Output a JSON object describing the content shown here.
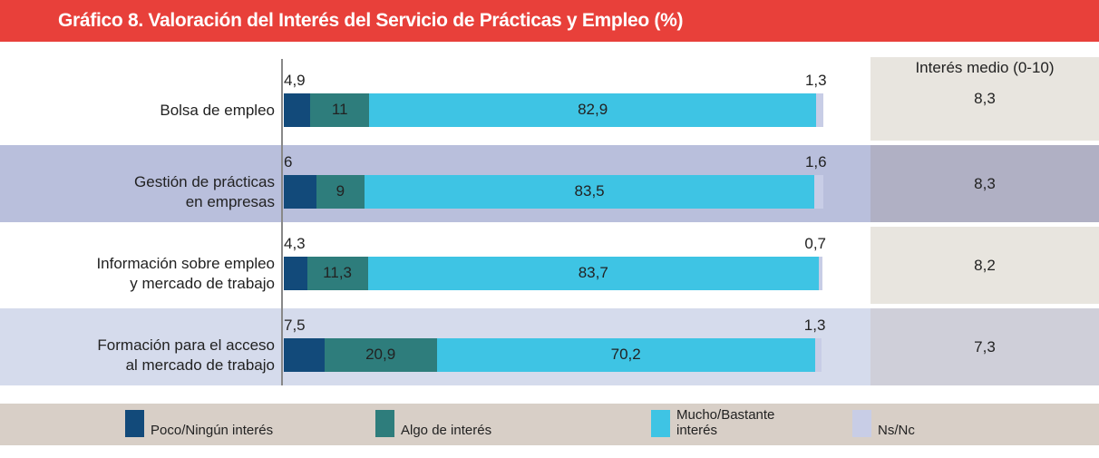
{
  "chart_data": {
    "type": "stacked_bar_horizontal",
    "title": "Gráfico 8. Valoración del Interés del Servicio de Prácticas y Empleo (%)",
    "categories": [
      "Bolsa de empleo",
      "Gestión de prácticas\nen empresas",
      "Información sobre empleo\ny mercado de trabajo",
      "Formación para el acceso\nal mercado de trabajo"
    ],
    "xlim": [
      0,
      100
    ],
    "series": [
      {
        "name": "Poco/Ningún interés",
        "color": "#124a7a",
        "values": [
          4.9,
          6,
          4.3,
          7.5
        ],
        "value_labels": [
          "4,9",
          "6",
          "4,3",
          "7,5"
        ]
      },
      {
        "name": "Algo de interés",
        "color": "#2e7d7c",
        "values": [
          11,
          9,
          11.3,
          20.9
        ],
        "value_labels": [
          "11",
          "9",
          "11,3",
          "20,9"
        ]
      },
      {
        "name": "Mucho/Bastante\ninterés",
        "color": "#3ec4e4",
        "values": [
          82.9,
          83.5,
          83.7,
          70.2
        ],
        "value_labels": [
          "82,9",
          "83,5",
          "83,7",
          "70,2"
        ]
      },
      {
        "name": "Ns/Nc",
        "color": "#c8cde6",
        "values": [
          1.3,
          1.6,
          0.7,
          1.3
        ],
        "value_labels": [
          "1,3",
          "1,6",
          "0,7",
          "1,3"
        ]
      }
    ],
    "mean_score": {
      "title": "Interés medio (0-10)",
      "values": [
        8.3,
        8.3,
        8.2,
        7.3
      ],
      "value_labels": [
        "8,3",
        "8,3",
        "8,2",
        "7,3"
      ]
    }
  }
}
